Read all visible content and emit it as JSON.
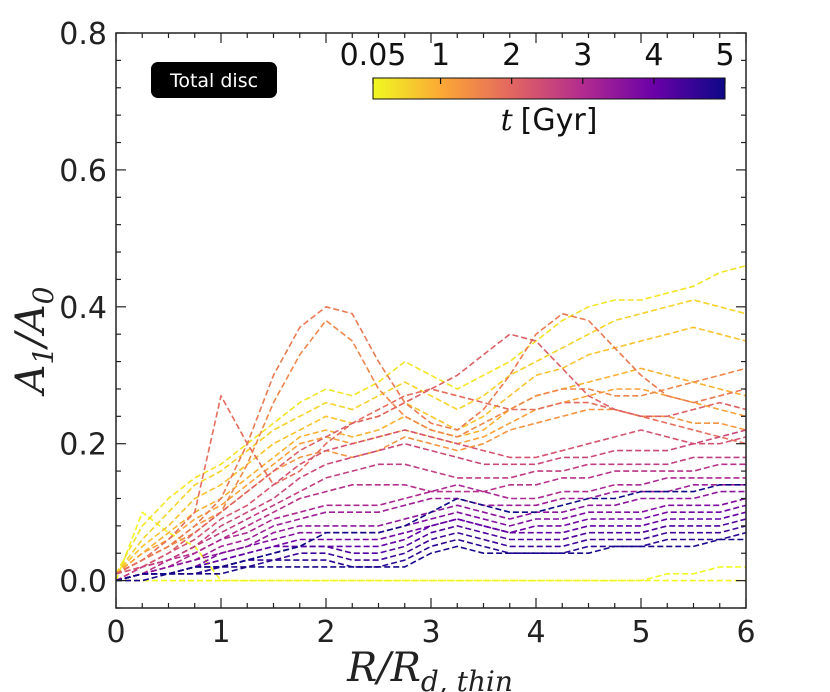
{
  "chart_data": {
    "type": "line",
    "title": "",
    "xlabel": "R/R_{d, thin}",
    "ylabel": "A_1/A_0",
    "xlim": [
      0,
      6
    ],
    "ylim": [
      -0.04,
      0.8
    ],
    "x_ticks": [
      "0",
      "1",
      "2",
      "3",
      "4",
      "5",
      "6"
    ],
    "y_ticks": [
      "0.0",
      "0.2",
      "0.4",
      "0.6",
      "0.8"
    ],
    "annotation": "Total disc",
    "colorbar": {
      "label": "t [Gyr]",
      "label_var": "t",
      "label_unit": "[Gyr]",
      "min": 0.05,
      "max": 5,
      "ticks": [
        "0.05",
        "1",
        "2",
        "3",
        "4",
        "5"
      ],
      "colormap": "plasma_r",
      "colors": [
        "#f0f921",
        "#fca636",
        "#e16462",
        "#b12a90",
        "#6a00a8",
        "#0d0887"
      ]
    },
    "line_style": "dashed",
    "x": [
      0,
      0.25,
      0.5,
      0.75,
      1,
      1.25,
      1.5,
      1.75,
      2,
      2.25,
      2.5,
      2.75,
      3,
      3.25,
      3.5,
      3.75,
      4,
      4.25,
      4.5,
      4.75,
      5,
      5.25,
      5.5,
      5.75,
      6
    ],
    "series": [
      {
        "name": "t=0.05",
        "t": 0.05,
        "values": [
          0,
          0.0,
          0.0,
          0.0,
          0.0,
          0.0,
          0.0,
          0.0,
          0.0,
          0.0,
          0.0,
          0.0,
          0.0,
          0.0,
          0.0,
          0.0,
          0.0,
          0.0,
          0.0,
          0.0,
          0.0,
          0.01,
          0.01,
          0.02,
          0.02
        ]
      },
      {
        "name": "t=0.10",
        "t": 0.1,
        "values": [
          0,
          0.1,
          0.07,
          0.05,
          0.0,
          0.0,
          0.0,
          0.0,
          0.0,
          0.0,
          0.0,
          0.0,
          0.0,
          0.0,
          0.0,
          0.0,
          0.0,
          0.0,
          0.0,
          0.0,
          0.0,
          0.0,
          0.0,
          0.0,
          0.0
        ]
      },
      {
        "name": "t=0.3",
        "t": 0.3,
        "values": [
          0.01,
          0.08,
          0.12,
          0.15,
          0.17,
          0.2,
          0.23,
          0.26,
          0.28,
          0.27,
          0.29,
          0.32,
          0.3,
          0.28,
          0.3,
          0.32,
          0.35,
          0.38,
          0.4,
          0.41,
          0.41,
          0.42,
          0.43,
          0.45,
          0.46
        ]
      },
      {
        "name": "t=0.5",
        "t": 0.5,
        "values": [
          0.01,
          0.06,
          0.1,
          0.14,
          0.16,
          0.19,
          0.22,
          0.24,
          0.26,
          0.25,
          0.27,
          0.29,
          0.27,
          0.25,
          0.27,
          0.3,
          0.32,
          0.34,
          0.36,
          0.38,
          0.39,
          0.4,
          0.41,
          0.4,
          0.39
        ]
      },
      {
        "name": "t=0.7",
        "t": 0.7,
        "values": [
          0.01,
          0.05,
          0.08,
          0.12,
          0.14,
          0.17,
          0.2,
          0.22,
          0.24,
          0.23,
          0.24,
          0.26,
          0.24,
          0.22,
          0.24,
          0.27,
          0.3,
          0.31,
          0.33,
          0.34,
          0.35,
          0.36,
          0.37,
          0.36,
          0.35
        ]
      },
      {
        "name": "t=0.9",
        "t": 0.9,
        "values": [
          0.01,
          0.04,
          0.07,
          0.1,
          0.12,
          0.15,
          0.18,
          0.21,
          0.22,
          0.21,
          0.22,
          0.24,
          0.22,
          0.21,
          0.22,
          0.25,
          0.27,
          0.28,
          0.29,
          0.3,
          0.31,
          0.3,
          0.29,
          0.28,
          0.27
        ]
      },
      {
        "name": "t=1.1",
        "t": 1.1,
        "values": [
          0.01,
          0.04,
          0.06,
          0.09,
          0.11,
          0.14,
          0.17,
          0.2,
          0.21,
          0.2,
          0.21,
          0.22,
          0.21,
          0.2,
          0.21,
          0.23,
          0.25,
          0.26,
          0.27,
          0.28,
          0.28,
          0.27,
          0.26,
          0.25,
          0.24
        ]
      },
      {
        "name": "t=1.3",
        "t": 1.3,
        "values": [
          0.01,
          0.03,
          0.05,
          0.08,
          0.1,
          0.13,
          0.16,
          0.18,
          0.19,
          0.18,
          0.19,
          0.21,
          0.2,
          0.19,
          0.2,
          0.22,
          0.23,
          0.24,
          0.25,
          0.25,
          0.24,
          0.24,
          0.23,
          0.23,
          0.22
        ]
      },
      {
        "name": "t=1.5",
        "t": 1.5,
        "values": [
          0.01,
          0.03,
          0.05,
          0.07,
          0.1,
          0.17,
          0.26,
          0.33,
          0.38,
          0.35,
          0.28,
          0.24,
          0.22,
          0.21,
          0.23,
          0.25,
          0.27,
          0.28,
          0.28,
          0.27,
          0.27,
          0.28,
          0.29,
          0.3,
          0.31
        ]
      },
      {
        "name": "t=1.7",
        "t": 1.7,
        "values": [
          0.01,
          0.03,
          0.05,
          0.08,
          0.12,
          0.2,
          0.3,
          0.37,
          0.4,
          0.39,
          0.32,
          0.26,
          0.23,
          0.22,
          0.25,
          0.3,
          0.36,
          0.39,
          0.38,
          0.34,
          0.3,
          0.27,
          0.26,
          0.27,
          0.28
        ]
      },
      {
        "name": "t=1.9",
        "t": 1.9,
        "values": [
          0.01,
          0.03,
          0.06,
          0.1,
          0.27,
          0.2,
          0.14,
          0.16,
          0.2,
          0.23,
          0.25,
          0.27,
          0.28,
          0.27,
          0.26,
          0.25,
          0.25,
          0.26,
          0.26,
          0.25,
          0.24,
          0.23,
          0.22,
          0.21,
          0.2
        ]
      },
      {
        "name": "t=2.1",
        "t": 2.1,
        "values": [
          0.01,
          0.02,
          0.04,
          0.07,
          0.1,
          0.13,
          0.16,
          0.19,
          0.21,
          0.23,
          0.24,
          0.26,
          0.28,
          0.3,
          0.33,
          0.36,
          0.35,
          0.31,
          0.27,
          0.25,
          0.24,
          0.24,
          0.25,
          0.26,
          0.25
        ]
      },
      {
        "name": "t=2.3",
        "t": 2.3,
        "values": [
          0.01,
          0.02,
          0.04,
          0.06,
          0.09,
          0.11,
          0.14,
          0.17,
          0.19,
          0.2,
          0.21,
          0.22,
          0.21,
          0.2,
          0.19,
          0.18,
          0.18,
          0.19,
          0.2,
          0.21,
          0.22,
          0.21,
          0.2,
          0.2,
          0.21
        ]
      },
      {
        "name": "t=2.5",
        "t": 2.5,
        "values": [
          0.0,
          0.02,
          0.03,
          0.05,
          0.08,
          0.1,
          0.12,
          0.15,
          0.17,
          0.18,
          0.19,
          0.2,
          0.19,
          0.18,
          0.17,
          0.17,
          0.17,
          0.18,
          0.18,
          0.19,
          0.19,
          0.19,
          0.2,
          0.21,
          0.22
        ]
      },
      {
        "name": "t=2.7",
        "t": 2.7,
        "values": [
          0.0,
          0.02,
          0.03,
          0.05,
          0.07,
          0.09,
          0.11,
          0.13,
          0.15,
          0.16,
          0.17,
          0.17,
          0.16,
          0.15,
          0.15,
          0.15,
          0.16,
          0.16,
          0.17,
          0.17,
          0.17,
          0.17,
          0.18,
          0.18,
          0.18
        ]
      },
      {
        "name": "t=2.9",
        "t": 2.9,
        "values": [
          0.0,
          0.01,
          0.03,
          0.04,
          0.06,
          0.08,
          0.1,
          0.12,
          0.13,
          0.14,
          0.14,
          0.14,
          0.13,
          0.13,
          0.13,
          0.14,
          0.14,
          0.15,
          0.15,
          0.16,
          0.16,
          0.16,
          0.16,
          0.17,
          0.17
        ]
      },
      {
        "name": "t=3.1",
        "t": 3.1,
        "values": [
          0.0,
          0.01,
          0.02,
          0.04,
          0.06,
          0.07,
          0.09,
          0.1,
          0.11,
          0.11,
          0.11,
          0.12,
          0.13,
          0.14,
          0.13,
          0.12,
          0.12,
          0.13,
          0.13,
          0.14,
          0.14,
          0.15,
          0.15,
          0.15,
          0.15
        ]
      },
      {
        "name": "t=3.3",
        "t": 3.3,
        "values": [
          0.0,
          0.01,
          0.02,
          0.03,
          0.05,
          0.06,
          0.08,
          0.09,
          0.1,
          0.1,
          0.1,
          0.11,
          0.12,
          0.12,
          0.11,
          0.11,
          0.11,
          0.12,
          0.12,
          0.13,
          0.13,
          0.13,
          0.14,
          0.14,
          0.14
        ]
      },
      {
        "name": "t=3.5",
        "t": 3.5,
        "values": [
          0.0,
          0.01,
          0.02,
          0.03,
          0.04,
          0.05,
          0.07,
          0.08,
          0.08,
          0.08,
          0.08,
          0.09,
          0.1,
          0.11,
          0.1,
          0.09,
          0.1,
          0.1,
          0.11,
          0.11,
          0.12,
          0.12,
          0.12,
          0.13,
          0.13
        ]
      },
      {
        "name": "t=3.7",
        "t": 3.7,
        "values": [
          0.0,
          0.01,
          0.01,
          0.02,
          0.04,
          0.05,
          0.06,
          0.07,
          0.07,
          0.07,
          0.07,
          0.08,
          0.09,
          0.1,
          0.09,
          0.08,
          0.09,
          0.09,
          0.1,
          0.1,
          0.1,
          0.11,
          0.11,
          0.11,
          0.12
        ]
      },
      {
        "name": "t=3.9",
        "t": 3.9,
        "values": [
          0.0,
          0.01,
          0.01,
          0.02,
          0.03,
          0.04,
          0.05,
          0.06,
          0.06,
          0.06,
          0.06,
          0.07,
          0.08,
          0.09,
          0.08,
          0.07,
          0.08,
          0.08,
          0.09,
          0.09,
          0.09,
          0.1,
          0.1,
          0.1,
          0.11
        ]
      },
      {
        "name": "t=4.1",
        "t": 4.1,
        "values": [
          0.0,
          0.01,
          0.01,
          0.02,
          0.03,
          0.04,
          0.05,
          0.05,
          0.05,
          0.05,
          0.05,
          0.06,
          0.08,
          0.09,
          0.08,
          0.07,
          0.07,
          0.07,
          0.08,
          0.08,
          0.08,
          0.09,
          0.09,
          0.09,
          0.1
        ]
      },
      {
        "name": "t=4.3",
        "t": 4.3,
        "values": [
          0.0,
          0.01,
          0.01,
          0.02,
          0.02,
          0.03,
          0.04,
          0.05,
          0.05,
          0.04,
          0.04,
          0.05,
          0.07,
          0.08,
          0.07,
          0.06,
          0.06,
          0.06,
          0.07,
          0.07,
          0.07,
          0.08,
          0.08,
          0.08,
          0.09
        ]
      },
      {
        "name": "t=4.5",
        "t": 4.5,
        "values": [
          0.0,
          0.01,
          0.01,
          0.01,
          0.02,
          0.03,
          0.03,
          0.04,
          0.04,
          0.03,
          0.03,
          0.04,
          0.06,
          0.07,
          0.06,
          0.05,
          0.05,
          0.05,
          0.06,
          0.06,
          0.06,
          0.07,
          0.07,
          0.07,
          0.08
        ]
      },
      {
        "name": "t=4.7",
        "t": 4.7,
        "values": [
          0.0,
          0.01,
          0.01,
          0.01,
          0.02,
          0.02,
          0.03,
          0.03,
          0.03,
          0.02,
          0.02,
          0.03,
          0.05,
          0.06,
          0.05,
          0.04,
          0.04,
          0.04,
          0.05,
          0.05,
          0.05,
          0.06,
          0.06,
          0.06,
          0.07
        ]
      },
      {
        "name": "t=4.9",
        "t": 4.9,
        "values": [
          0.0,
          0.0,
          0.01,
          0.01,
          0.01,
          0.02,
          0.02,
          0.02,
          0.02,
          0.02,
          0.02,
          0.02,
          0.04,
          0.05,
          0.04,
          0.04,
          0.04,
          0.04,
          0.04,
          0.05,
          0.05,
          0.05,
          0.05,
          0.06,
          0.06
        ]
      },
      {
        "name": "t=5.0",
        "t": 5.0,
        "values": [
          0.0,
          0.01,
          0.01,
          0.02,
          0.02,
          0.03,
          0.04,
          0.05,
          0.07,
          0.07,
          0.07,
          0.08,
          0.1,
          0.12,
          0.11,
          0.1,
          0.1,
          0.11,
          0.12,
          0.12,
          0.13,
          0.13,
          0.13,
          0.14,
          0.14
        ]
      }
    ]
  }
}
